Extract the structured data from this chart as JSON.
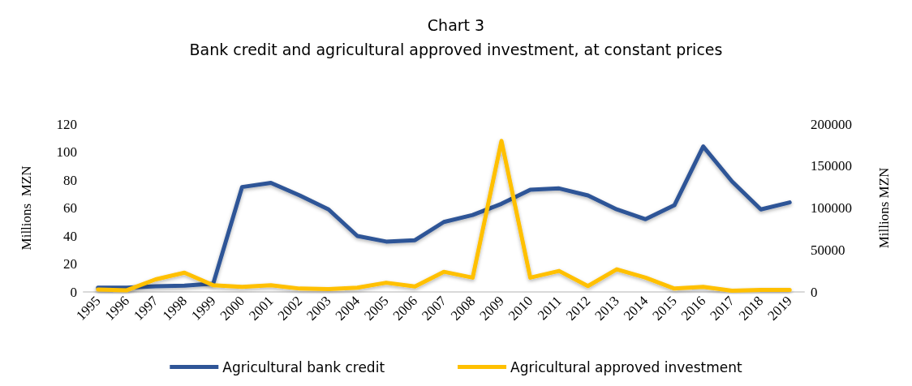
{
  "chart_data": {
    "type": "line",
    "title": "Chart 3",
    "subtitle": "Bank credit and agricultural approved investment, at constant prices",
    "ylabel": "Millions  MZN",
    "y2label": "Millions MZN",
    "categories": [
      "1995",
      "1996",
      "1997",
      "1998",
      "1999",
      "2000",
      "2001",
      "2002",
      "2003",
      "2004",
      "2005",
      "2006",
      "2007",
      "2008",
      "2009",
      "2010",
      "2011",
      "2012",
      "2013",
      "2014",
      "2015",
      "2016",
      "2017",
      "2018",
      "2019"
    ],
    "series": [
      {
        "name": "Agricultural bank credit",
        "color": "#2f5597",
        "values": [
          3,
          3,
          4,
          4.5,
          6,
          75,
          78,
          69,
          59,
          40,
          36,
          37,
          50,
          55,
          63,
          73,
          74,
          69,
          59,
          52,
          62,
          104,
          79,
          59,
          64
        ]
      },
      {
        "name": "Agricultural approved investment",
        "color": "#ffc000",
        "axis": "y2",
        "values": [
          3000,
          2000,
          15000,
          23000,
          8000,
          6000,
          8000,
          4000,
          3500,
          5000,
          11000,
          6500,
          24000,
          17000,
          180000,
          17000,
          25000,
          7000,
          27000,
          17000,
          4000,
          6000,
          1500,
          2500,
          2500
        ]
      }
    ],
    "ylim": [
      0,
      120
    ],
    "yticks": [
      0,
      20,
      40,
      60,
      80,
      100,
      120
    ],
    "y2lim": [
      0,
      200000
    ],
    "y2ticks": [
      0,
      50000,
      100000,
      150000,
      200000
    ],
    "grid": false,
    "legend": "bottom",
    "marker": "none",
    "line_style": "solid"
  }
}
